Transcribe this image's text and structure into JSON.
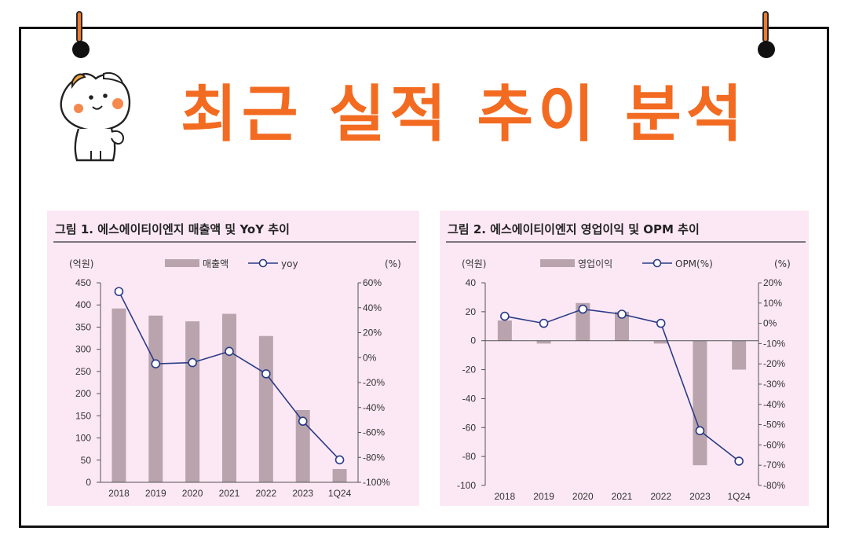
{
  "page": {
    "title": "최근 실적 추이 분석"
  },
  "colors": {
    "title": "#f26b21",
    "chart_bg": "#fce8f5",
    "bar": "#b9a4ad",
    "line": "#2b3b86"
  },
  "chart_data": [
    {
      "type": "bar",
      "title": "그림 1. 에스에이티이엔지 매출액 및 YoY 추이",
      "left_unit": "(억원)",
      "right_unit": "(%)",
      "categories": [
        "2018",
        "2019",
        "2020",
        "2021",
        "2022",
        "2023",
        "1Q24"
      ],
      "series": [
        {
          "name": "매출액",
          "type": "bar",
          "axis": "left",
          "values": [
            392,
            376,
            363,
            380,
            330,
            163,
            30
          ]
        },
        {
          "name": "yoy",
          "type": "line",
          "axis": "right",
          "values": [
            53,
            -5,
            -4,
            5,
            -13,
            -51,
            -82
          ]
        }
      ],
      "left_ylim": [
        0,
        450
      ],
      "left_ticks": [
        "0",
        "50",
        "100",
        "150",
        "200",
        "250",
        "300",
        "350",
        "400",
        "450"
      ],
      "right_ylim": [
        -100,
        60
      ],
      "right_ticks": [
        "-100%",
        "-80%",
        "-60%",
        "-40%",
        "-20%",
        "0%",
        "20%",
        "40%",
        "60%"
      ],
      "legend_position": "top"
    },
    {
      "type": "bar",
      "title": "그림 2. 에스에이티이엔지 영업이익 및 OPM 추이",
      "left_unit": "(억원)",
      "right_unit": "(%)",
      "categories": [
        "2018",
        "2019",
        "2020",
        "2021",
        "2022",
        "2023",
        "1Q24"
      ],
      "series": [
        {
          "name": "영업이익",
          "type": "bar",
          "axis": "left",
          "values": [
            14,
            -2,
            26,
            20,
            -2,
            -86,
            -20
          ]
        },
        {
          "name": "OPM(%)",
          "type": "line",
          "axis": "right",
          "values": [
            3.5,
            0,
            7,
            4.5,
            0,
            -53,
            -68
          ]
        }
      ],
      "left_ylim": [
        -100,
        40
      ],
      "left_ticks": [
        "-100",
        "-80",
        "-60",
        "-40",
        "-20",
        "0",
        "20",
        "40"
      ],
      "right_ylim": [
        -80,
        20
      ],
      "right_ticks": [
        "-80%",
        "-70%",
        "-60%",
        "-50%",
        "-40%",
        "-30%",
        "-20%",
        "-10%",
        "0%",
        "10%",
        "20%"
      ],
      "legend_position": "top"
    }
  ]
}
